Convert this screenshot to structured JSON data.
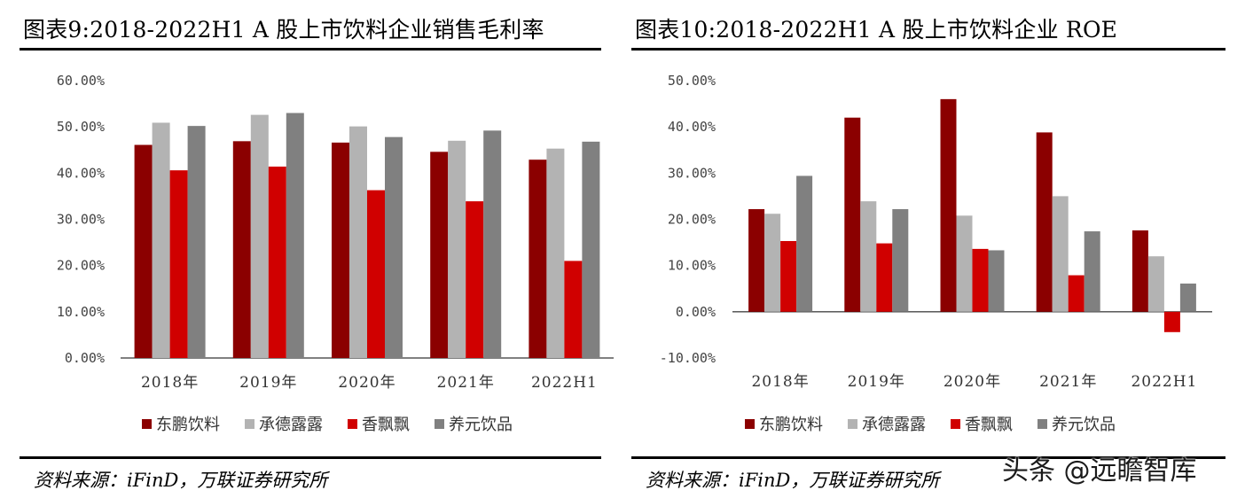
{
  "colors": {
    "dongpeng": "#8b0000",
    "chengde": "#b3b3b3",
    "xiangpiaopiao": "#d00000",
    "yangyuan": "#808080",
    "zero_line": "#000000"
  },
  "chart_data": [
    {
      "type": "bar",
      "title": "图表9:2018-2022H1 A 股上市饮料企业销售毛利率",
      "categories": [
        "2018年",
        "2019年",
        "2020年",
        "2021年",
        "2022H1"
      ],
      "ylim": [
        0,
        60
      ],
      "yticks": [
        0,
        10,
        20,
        30,
        40,
        50,
        60
      ],
      "ytick_labels": [
        "0.00%",
        "10.00%",
        "20.00%",
        "30.00%",
        "40.00%",
        "50.00%",
        "60.00%"
      ],
      "series": [
        {
          "name": "东鹏饮料",
          "values": [
            46.1,
            46.9,
            46.6,
            44.6,
            42.9
          ]
        },
        {
          "name": "承德露露",
          "values": [
            50.9,
            52.6,
            50.1,
            47.0,
            45.3
          ]
        },
        {
          "name": "香飘飘",
          "values": [
            40.6,
            41.4,
            36.3,
            33.9,
            21.0
          ]
        },
        {
          "name": "养元饮品",
          "values": [
            50.2,
            53.0,
            47.8,
            49.2,
            46.8
          ]
        }
      ],
      "source": "资料来源：iFinD，万联证券研究所"
    },
    {
      "type": "bar",
      "title": "图表10:2018-2022H1 A 股上市饮料企业 ROE",
      "categories": [
        "2018年",
        "2019年",
        "2020年",
        "2021年",
        "2022H1"
      ],
      "ylim": [
        -10,
        50
      ],
      "yticks": [
        -10,
        0,
        10,
        20,
        30,
        40,
        50
      ],
      "ytick_labels": [
        "-10.00%",
        "0.00%",
        "10.00%",
        "20.00%",
        "30.00%",
        "40.00%",
        "50.00%"
      ],
      "series": [
        {
          "name": "东鹏饮料",
          "values": [
            22.2,
            42.0,
            46.0,
            38.8,
            17.6
          ]
        },
        {
          "name": "承德露露",
          "values": [
            21.2,
            23.9,
            20.8,
            25.0,
            12.0
          ]
        },
        {
          "name": "香飘飘",
          "values": [
            15.3,
            14.8,
            13.6,
            7.9,
            -4.4
          ]
        },
        {
          "name": "养元饮品",
          "values": [
            29.4,
            22.2,
            13.3,
            17.4,
            6.1
          ]
        }
      ],
      "source": "资料来源：iFinD，万联证券研究所"
    }
  ],
  "watermark": "头条 @远瞻智库"
}
